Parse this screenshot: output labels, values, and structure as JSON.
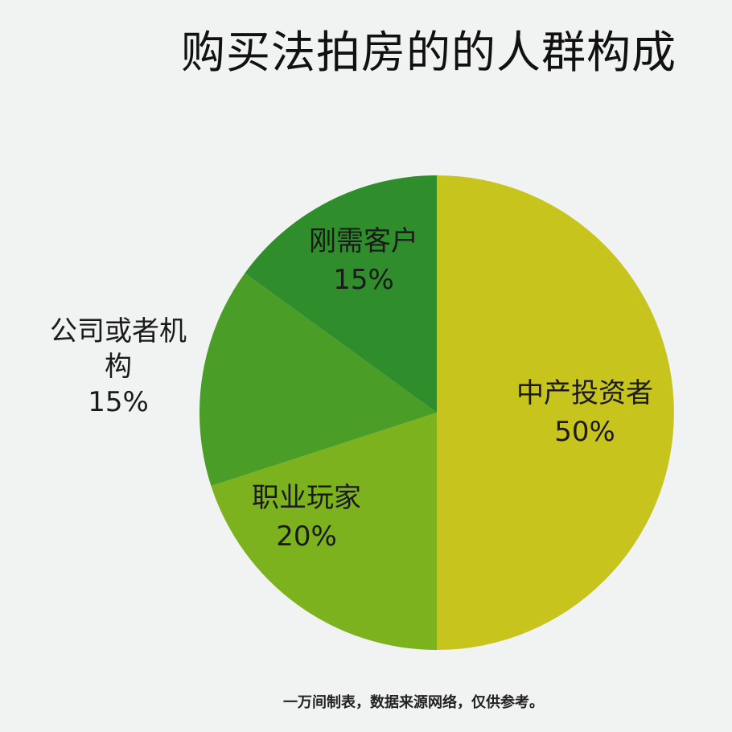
{
  "title": "购买法拍房的的人群构成",
  "footnote": "一万间制表，数据来源网络，仅供参考。",
  "chart_data": {
    "type": "pie",
    "title": "购买法拍房的的人群构成",
    "slices": [
      {
        "label": "中产投资者",
        "value": 50,
        "value_label": "50%",
        "color": "#c8c41e"
      },
      {
        "label": "职业玩家",
        "value": 20,
        "value_label": "20%",
        "color": "#7cb21d"
      },
      {
        "label": "公司或者机构",
        "label_lines": [
          "公司或者机",
          "构"
        ],
        "value": 15,
        "value_label": "15%",
        "color": "#4a9e28"
      },
      {
        "label": "刚需客户",
        "value": 15,
        "value_label": "15%",
        "color": "#2f8d2c"
      }
    ],
    "start": "12 o'clock",
    "direction": "clockwise"
  }
}
